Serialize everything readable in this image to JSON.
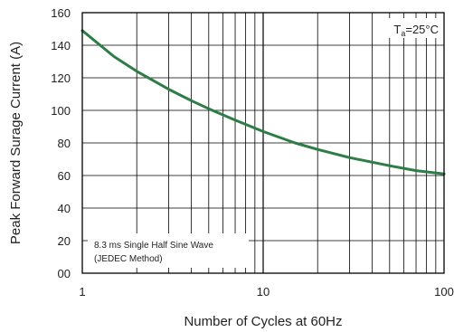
{
  "chart_data": {
    "type": "line",
    "xlabel": "Number of Cycles at 60Hz",
    "ylabel": "Peak Forward Surage Current (A)",
    "x_scale": "log",
    "xlim": [
      1,
      100
    ],
    "ylim": [
      0,
      160
    ],
    "x_ticks": [
      "1",
      "10",
      "100"
    ],
    "y_ticks": [
      "00",
      "20",
      "40",
      "60",
      "80",
      "100",
      "120",
      "140",
      "160"
    ],
    "grid": true,
    "series": [
      {
        "color": "#2e7d46",
        "x": [
          1,
          1.5,
          2,
          3,
          4,
          5,
          7,
          10,
          15,
          20,
          30,
          50,
          70,
          100
        ],
        "y": [
          149,
          133,
          124,
          113,
          106,
          101,
          94,
          87,
          80,
          76,
          71,
          66,
          63,
          61
        ]
      }
    ],
    "temperature_note": {
      "prefix": "T",
      "subscript": "a",
      "suffix": "=25°C"
    },
    "annotation": {
      "line1": "8.3 ms Single Half Sine Wave",
      "line2": "(JEDEC Method)"
    }
  }
}
